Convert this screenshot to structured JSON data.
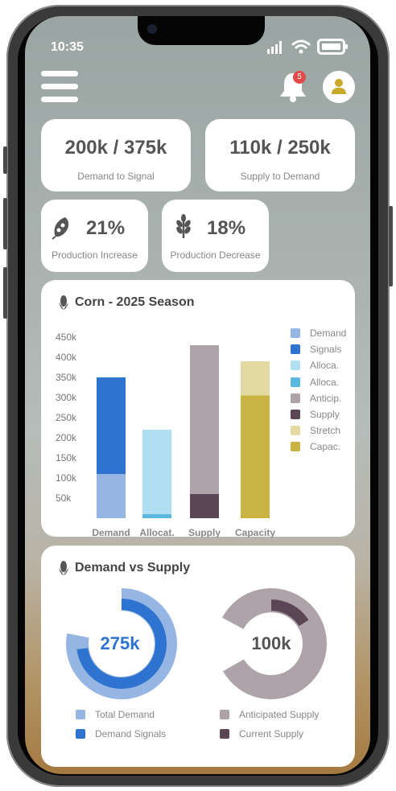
{
  "status_bar": {
    "time": "10:35"
  },
  "header": {
    "notification_count": "5"
  },
  "stats": [
    {
      "value": "200k / 375k",
      "label": "Demand to Signal"
    },
    {
      "value": "110k / 250k",
      "label": "Supply to Demand"
    },
    {
      "value": "21%",
      "label": "Production Increase",
      "icon": "seed-pod-icon"
    },
    {
      "value": "18%",
      "label": "Production Decrease",
      "icon": "wheat-icon"
    }
  ],
  "season_chart": {
    "title": "Corn - 2025 Season",
    "colors": {
      "demand": "#95b5e3",
      "signals": "#2e73cf",
      "alloc_light": "#b1dff2",
      "alloc_dark": "#5ab7e0",
      "anticip": "#ada3a9",
      "supply": "#5b4655",
      "stretch": "#e3d9a3",
      "capac": "#c9b342"
    },
    "legend": [
      "Demand",
      "Signals",
      "Alloca.",
      "Alloca.",
      "Anticip.",
      "Supply",
      "Stretch",
      "Capac."
    ]
  },
  "chart_data": [
    {
      "type": "bar",
      "stacked": true,
      "title": "Corn - 2025 Season",
      "categories": [
        "Demand",
        "Allocat.",
        "Supply",
        "Capacity"
      ],
      "ylim": [
        0,
        480000
      ],
      "yticks": [
        "50k",
        "100k",
        "150k",
        "200k",
        "250k",
        "300k",
        "350k",
        "400k",
        "450k"
      ],
      "series": [
        {
          "name": "Demand",
          "values": [
            110000,
            0,
            0,
            0
          ],
          "color": "#95b5e3"
        },
        {
          "name": "Signals",
          "values": [
            240000,
            0,
            0,
            0
          ],
          "color": "#2e73cf"
        },
        {
          "name": "Alloca.",
          "values": [
            0,
            10000,
            0,
            0
          ],
          "color": "#5ab7e0"
        },
        {
          "name": "Alloca.",
          "values": [
            0,
            210000,
            0,
            0
          ],
          "color": "#b1dff2"
        },
        {
          "name": "Supply",
          "values": [
            0,
            0,
            60000,
            0
          ],
          "color": "#5b4655"
        },
        {
          "name": "Anticip.",
          "values": [
            0,
            0,
            370000,
            0
          ],
          "color": "#ada3a9"
        },
        {
          "name": "Capac.",
          "values": [
            0,
            0,
            0,
            305000
          ],
          "color": "#c9b342"
        },
        {
          "name": "Stretch",
          "values": [
            0,
            0,
            0,
            85000
          ],
          "color": "#e3d9a3"
        }
      ]
    },
    {
      "type": "pie",
      "title": "Demand vs Supply",
      "charts": [
        {
          "center_label": "275k",
          "slices": [
            {
              "name": "Total Demand",
              "value": 1.0
            },
            {
              "name": "Demand Signals",
              "value": 0.73
            }
          ]
        },
        {
          "center_label": "100k",
          "slices": [
            {
              "name": "Anticipated Supply",
              "value": 1.0
            },
            {
              "name": "Current Supply",
              "value": 0.16
            }
          ]
        }
      ]
    }
  ],
  "dvs": {
    "title": "Demand vs Supply",
    "left_center": "275k",
    "right_center": "100k",
    "legend": [
      "Total Demand",
      "Demand Signals",
      "Anticipated Supply",
      "Current Supply"
    ]
  }
}
